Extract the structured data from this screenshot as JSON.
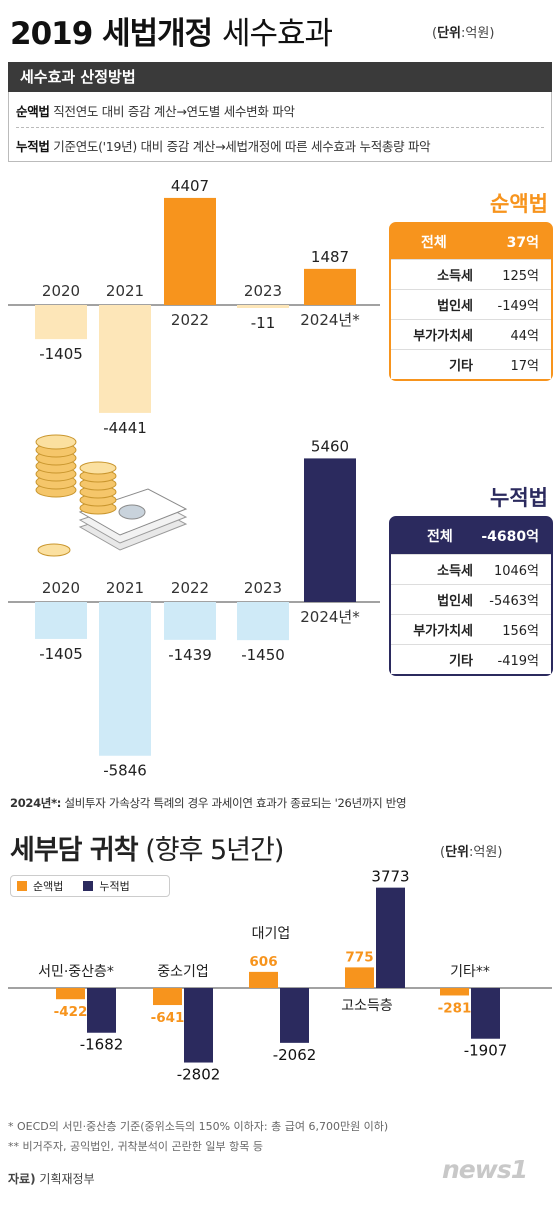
{
  "header": {
    "title_bold": "2019 세법개정",
    "title_light": "세수효과",
    "unit_prefix": "단위",
    "unit_value": ":억원"
  },
  "method": {
    "heading": "세수효과 산정방법",
    "line1_key": "순액법",
    "line1_text": "직전연도 대비 증감 계산→연도별 세수변화 파악",
    "line2_key": "누적법",
    "line2_text": "기준연도('19년) 대비 증감 계산→세법개정에 따른 세수효과 누적총량 파악"
  },
  "colors": {
    "orange": "#f7941d",
    "orange_light": "#fde6b8",
    "navy": "#2b2a5e",
    "sky_light": "#cfeaf7"
  },
  "chart_data": [
    {
      "type": "bar",
      "title": "순액법",
      "categories": [
        "2020",
        "2021",
        "2022",
        "2023",
        "2024년*"
      ],
      "values": [
        -1405,
        -4441,
        4407,
        -11,
        1487
      ],
      "value_labels": [
        "-1405",
        "-4441",
        "4407",
        "-11",
        "1487"
      ],
      "table": {
        "total_label": "전체",
        "total_value": "37억",
        "rows": [
          {
            "label": "소득세",
            "value": "125억"
          },
          {
            "label": "법인세",
            "value": "-149억"
          },
          {
            "label": "부가가치세",
            "value": "44억"
          },
          {
            "label": "기타",
            "value": "17억"
          }
        ]
      }
    },
    {
      "type": "bar",
      "title": "누적법",
      "categories": [
        "2020",
        "2021",
        "2022",
        "2023",
        "2024년*"
      ],
      "values": [
        -1405,
        -5846,
        -1439,
        -1450,
        5460
      ],
      "value_labels": [
        "-1405",
        "-5846",
        "-1439",
        "-1450",
        "5460"
      ],
      "table": {
        "total_label": "전체",
        "total_value": "-4680억",
        "rows": [
          {
            "label": "소득세",
            "value": "1046억"
          },
          {
            "label": "법인세",
            "value": "-5463억"
          },
          {
            "label": "부가가치세",
            "value": "156억"
          },
          {
            "label": "기타",
            "value": "-419억"
          }
        ]
      }
    },
    {
      "type": "bar",
      "title": "세부담 귀착 (향후 5년간)",
      "categories": [
        "서민·중산층*",
        "중소기업",
        "대기업",
        "고소득층",
        "기타**"
      ],
      "series": [
        {
          "name": "순액법",
          "values": [
            -422,
            -641,
            606,
            775,
            -281
          ],
          "labels": [
            "-422",
            "-641",
            "606",
            "775",
            "-281"
          ]
        },
        {
          "name": "누적법",
          "values": [
            -1682,
            -2802,
            -2062,
            3773,
            -1907
          ],
          "labels": [
            "-1682",
            "-2802",
            "-2062",
            "3773",
            "-1907"
          ]
        }
      ]
    }
  ],
  "note_2024": {
    "key": "2024년*:",
    "text": "설비투자 가속상각 특례의 경우 과세이연 효과가 종료되는 '26년까지 반영"
  },
  "section2": {
    "title_bold": "세부담 귀착",
    "title_light": "(향후 5년간)",
    "unit_prefix": "단위",
    "unit_value": ":억원"
  },
  "footnotes": [
    "* OECD의 서민·중산층 기준(중위소득의 150% 이하자: 총 급여 6,700만원 이하)",
    "** 비거주자, 공익법인, 귀착분석이 곤란한 일부 항목 등"
  ],
  "source": {
    "key": "자료)",
    "value": "기획재정부"
  },
  "logo": "news1"
}
